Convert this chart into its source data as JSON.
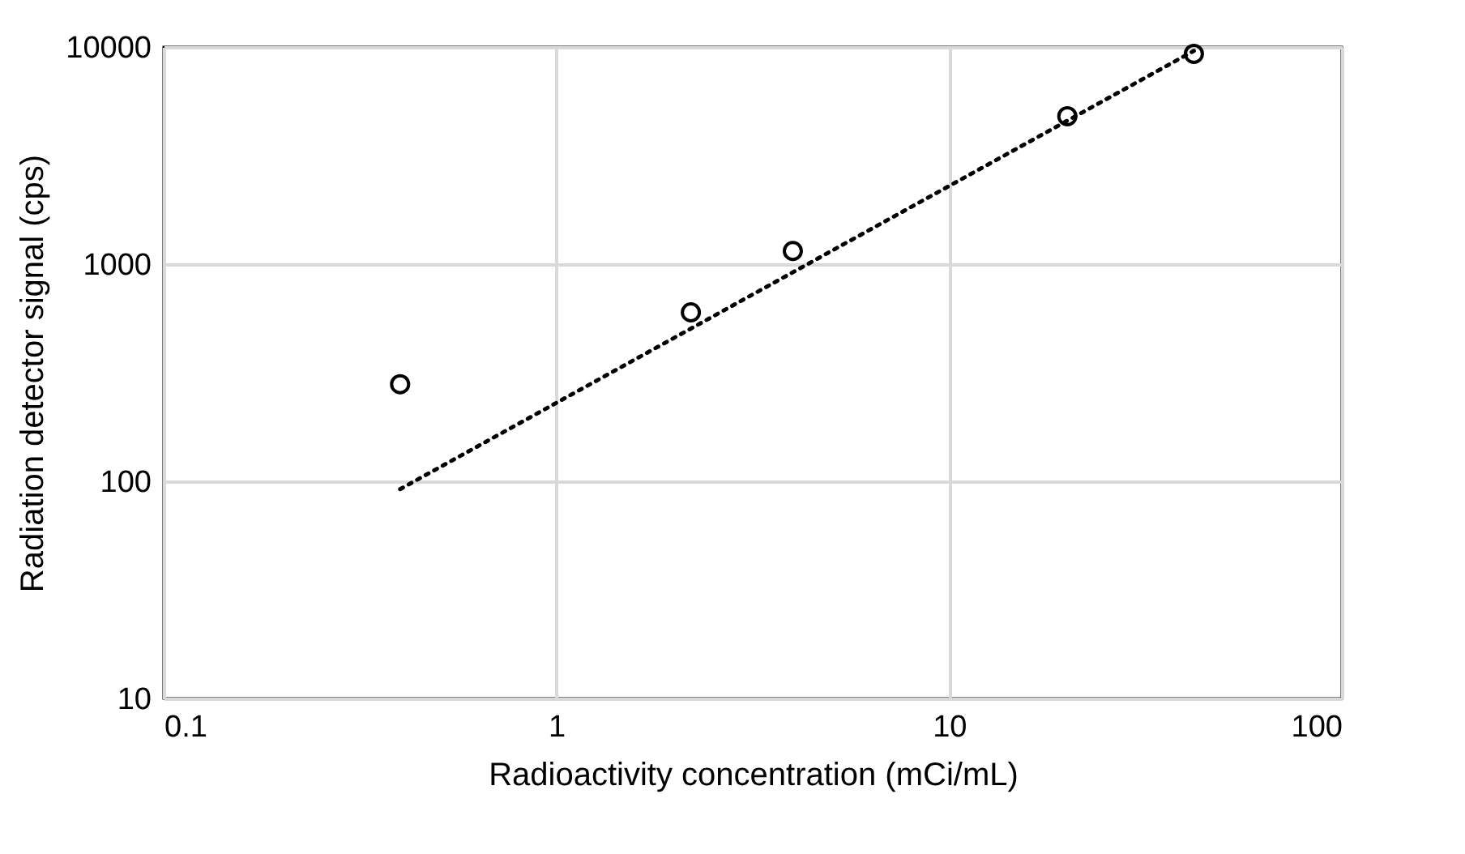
{
  "chart_data": {
    "type": "scatter",
    "xlabel": "Radioactivity concentration (mCi/mL)",
    "ylabel": "Radiation detector signal (cps)",
    "log": "xy",
    "grid": true,
    "marker": "circle",
    "xlim": [
      0.1,
      100
    ],
    "xticks": [
      0.1,
      1,
      10,
      100
    ],
    "ylim": [
      10,
      10000
    ],
    "yticks": [
      10,
      100,
      1000,
      10000
    ],
    "series": [
      {
        "color": "#000000",
        "x": [
          0.4,
          2.2,
          4,
          20,
          42
        ],
        "values": [
          280,
          600,
          1150,
          4800,
          9300
        ]
      },
      {
        "type": "line",
        "color": "#000000",
        "line_style": "dotted",
        "marker": "none",
        "x": [
          0.4,
          42
        ],
        "values": [
          92,
          9600
        ]
      }
    ]
  }
}
